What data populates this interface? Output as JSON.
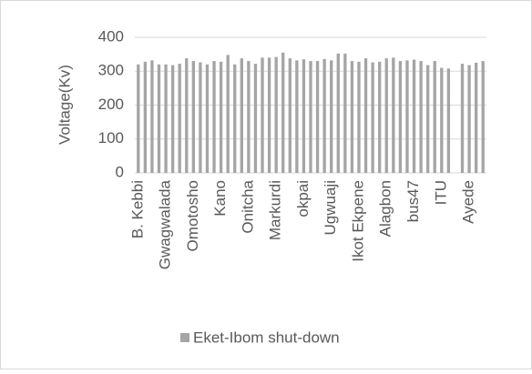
{
  "chart_data": {
    "type": "bar",
    "y_label": "Voltage(Kv)",
    "categories": [
      "B. Kebbi",
      null,
      null,
      null,
      "Gwagwalada",
      null,
      null,
      null,
      "Omotosho",
      null,
      null,
      null,
      "Kano",
      null,
      null,
      null,
      "Onitcha",
      null,
      null,
      null,
      "Markurdi",
      null,
      null,
      null,
      "okpai",
      null,
      null,
      null,
      "Ugwuaji",
      null,
      null,
      null,
      "Ikot Ekpene",
      null,
      null,
      null,
      "Alagbon",
      null,
      null,
      null,
      "bus47",
      null,
      null,
      null,
      "ITU",
      null,
      null,
      null,
      "Ayede",
      null,
      null
    ],
    "series": [
      {
        "name": "Eket-Ibom shut-down",
        "color": "#a5a5a5",
        "values": [
          320,
          328,
          332,
          320,
          320,
          318,
          322,
          338,
          330,
          326,
          320,
          330,
          328,
          348,
          320,
          338,
          330,
          322,
          340,
          340,
          342,
          355,
          338,
          332,
          335,
          330,
          330,
          336,
          332,
          352,
          352,
          330,
          328,
          338,
          326,
          328,
          338,
          340,
          330,
          332,
          334,
          330,
          318,
          330,
          310,
          308,
          null,
          322,
          318,
          325,
          330
        ]
      }
    ],
    "ylim": [
      0,
      400
    ],
    "yticks": [
      0,
      100,
      200,
      300,
      400
    ],
    "grid": true,
    "legend": "bottom"
  }
}
